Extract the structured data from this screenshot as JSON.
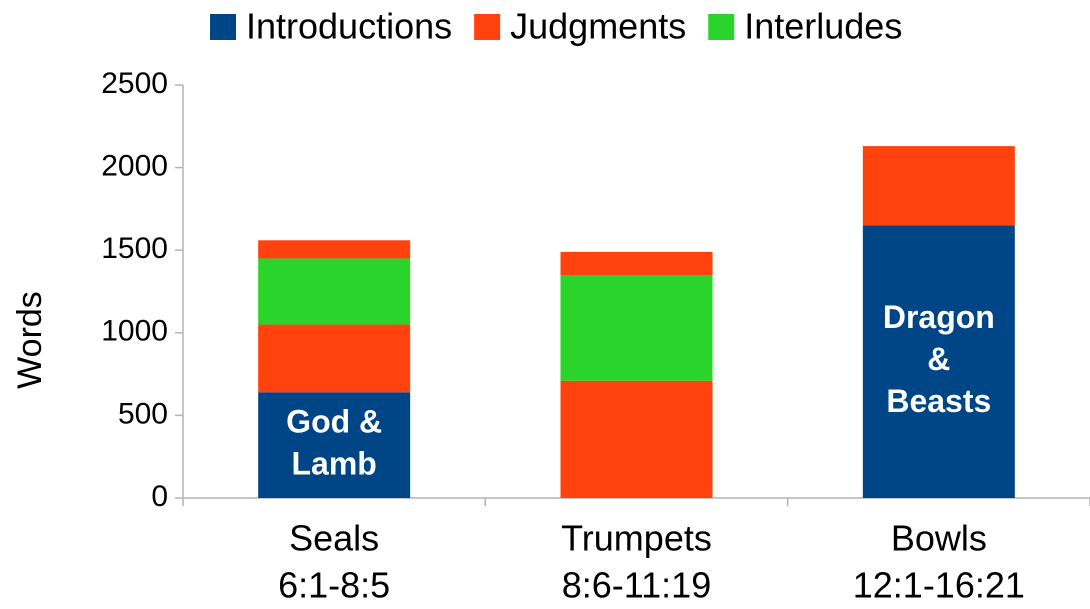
{
  "chart_data": {
    "type": "stacked_bar",
    "y_label": "Words",
    "categories": [
      [
        "Seals",
        "6:1-8:5"
      ],
      [
        "Trumpets",
        "8:6-11:19"
      ],
      [
        "Bowls",
        "12:1-16:21"
      ]
    ],
    "series": [
      {
        "name": "Introductions",
        "color": "#004586",
        "values": [
          640,
          null,
          1650
        ],
        "labels": [
          [
            "God &",
            "Lamb"
          ],
          null,
          [
            "Dragon",
            "&",
            "Beasts"
          ]
        ]
      },
      {
        "name": "Judgments",
        "color": "#ff420e",
        "values": [
          410,
          710,
          480
        ]
      },
      {
        "name": "Interludes",
        "color": "#2ad42a",
        "values": [
          400,
          640,
          null
        ]
      },
      {
        "name": "Judgments",
        "color": "#ff420e",
        "values": [
          110,
          140,
          null
        ]
      }
    ],
    "ylim": [
      0,
      2500
    ],
    "yticks": [
      0,
      500,
      1000,
      1500,
      2000,
      2500
    ],
    "grid": false,
    "legend": "top"
  }
}
